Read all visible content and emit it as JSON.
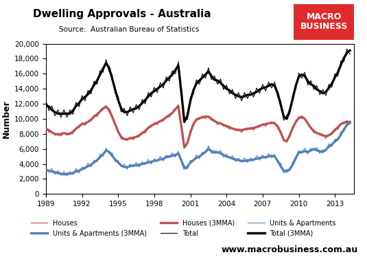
{
  "chart_data": {
    "type": "line",
    "title": "Dwelling Approvals - Australia",
    "subtitle": "Source:  Australian Bureau of Statistics",
    "logo": "MACRO BUSINESS",
    "website": "www.macrobusiness.com.au",
    "y_label": "Number",
    "x": [
      1989.0,
      1989.25,
      1989.5,
      1989.75,
      1990.0,
      1990.25,
      1990.5,
      1990.75,
      1991.0,
      1991.25,
      1991.5,
      1991.75,
      1992.0,
      1992.25,
      1992.5,
      1992.75,
      1993.0,
      1993.25,
      1993.5,
      1993.75,
      1994.0,
      1994.25,
      1994.5,
      1994.75,
      1995.0,
      1995.25,
      1995.5,
      1995.75,
      1996.0,
      1996.25,
      1996.5,
      1996.75,
      1997.0,
      1997.25,
      1997.5,
      1997.75,
      1998.0,
      1998.25,
      1998.5,
      1998.75,
      1999.0,
      1999.25,
      1999.5,
      1999.75,
      2000.0,
      2000.25,
      2000.5,
      2000.75,
      2001.0,
      2001.25,
      2001.5,
      2001.75,
      2002.0,
      2002.25,
      2002.5,
      2002.75,
      2003.0,
      2003.25,
      2003.5,
      2003.75,
      2004.0,
      2004.25,
      2004.5,
      2004.75,
      2005.0,
      2005.25,
      2005.5,
      2005.75,
      2006.0,
      2006.25,
      2006.5,
      2006.75,
      2007.0,
      2007.25,
      2007.5,
      2007.75,
      2008.0,
      2008.25,
      2008.5,
      2008.75,
      2009.0,
      2009.25,
      2009.5,
      2009.75,
      2010.0,
      2010.25,
      2010.5,
      2010.75,
      2011.0,
      2011.25,
      2011.5,
      2011.75,
      2012.0,
      2012.25,
      2012.5,
      2012.75,
      2013.0,
      2013.25,
      2013.5,
      2013.75,
      2014.0,
      2014.25
    ],
    "series": [
      {
        "name": "Houses",
        "color": "#c0504d",
        "line_style": "solid",
        "values": [
          8900,
          8200,
          8300,
          7800,
          8100,
          7700,
          8200,
          7800,
          8200,
          8000,
          8800,
          8800,
          9500,
          9100,
          9700,
          9700,
          10500,
          10300,
          11100,
          11200,
          11800,
          10900,
          10400,
          9100,
          8500,
          7300,
          7400,
          7100,
          7600,
          7200,
          7700,
          7600,
          8300,
          8100,
          8900,
          8900,
          9500,
          9200,
          9800,
          9700,
          10400,
          10200,
          10900,
          11100,
          11900,
          8700,
          6300,
          6600,
          8400,
          9000,
          10000,
          9900,
          10400,
          10000,
          10400,
          9800,
          9900,
          9200,
          9500,
          9000,
          9200,
          8600,
          8800,
          8400,
          8700,
          8200,
          8700,
          8500,
          8900,
          8500,
          9000,
          8900,
          9400,
          9000,
          9500,
          9300,
          9600,
          8700,
          8300,
          7000,
          7200,
          7500,
          8900,
          9400,
          10300,
          10000,
          10100,
          9200,
          9000,
          8100,
          8200,
          7800,
          8000,
          7400,
          7900,
          7900,
          8700,
          8600,
          9400,
          9300,
          9800,
          9300
        ]
      },
      {
        "name": "Houses (3MMA)",
        "color": "#c0504d",
        "line_style": "solid",
        "values": [
          8700,
          8500,
          8200,
          8000,
          7900,
          8000,
          8100,
          8000,
          8000,
          8300,
          8700,
          9000,
          9300,
          9400,
          9600,
          9900,
          10300,
          10600,
          11000,
          11400,
          11600,
          11200,
          10300,
          9300,
          8300,
          7600,
          7300,
          7300,
          7400,
          7500,
          7600,
          7800,
          8100,
          8400,
          8800,
          9100,
          9300,
          9500,
          9700,
          9900,
          10200,
          10500,
          10800,
          11300,
          11700,
          9000,
          6200,
          6800,
          8200,
          9300,
          9900,
          10100,
          10200,
          10300,
          10300,
          10000,
          9700,
          9500,
          9400,
          9200,
          9000,
          8900,
          8700,
          8600,
          8500,
          8500,
          8600,
          8700,
          8700,
          8800,
          8900,
          9100,
          9200,
          9300,
          9400,
          9500,
          9400,
          9000,
          8200,
          7200,
          7000,
          7800,
          8800,
          9600,
          10100,
          10300,
          10000,
          9400,
          8800,
          8400,
          8100,
          8000,
          7800,
          7700,
          7800,
          8100,
          8500,
          8900,
          9300,
          9500,
          9600,
          9600
        ]
      },
      {
        "name": "Units & Apartments",
        "color": "#4f81bd",
        "line_style": "solid",
        "values": [
          3500,
          2900,
          3400,
          2600,
          3100,
          2500,
          3000,
          2400,
          3000,
          2600,
          3400,
          2800,
          3600,
          3300,
          4100,
          3600,
          4500,
          4300,
          5300,
          5000,
          6100,
          5400,
          5500,
          4300,
          4500,
          3600,
          4000,
          3300,
          4000,
          3600,
          4200,
          3600,
          4300,
          3900,
          4600,
          4000,
          4700,
          4300,
          5000,
          4400,
          5200,
          4800,
          5500,
          4900,
          5700,
          4300,
          3800,
          3300,
          4500,
          4300,
          5200,
          4700,
          5600,
          5400,
          6400,
          5400,
          5800,
          5400,
          5800,
          4900,
          5300,
          4700,
          5100,
          4300,
          4800,
          4200,
          4800,
          4200,
          4800,
          4400,
          5100,
          4500,
          5200,
          4700,
          5400,
          4800,
          5300,
          4200,
          4100,
          2800,
          3300,
          3100,
          4300,
          4500,
          5800,
          5400,
          6100,
          5300,
          6100,
          5800,
          6200,
          5400,
          5900,
          5700,
          6700,
          6300,
          7300,
          7100,
          8300,
          8300,
          9500,
          9300
        ]
      },
      {
        "name": "Units & Apartments (3MMA)",
        "color": "#4f81bd",
        "line_style": "solid",
        "values": [
          3200,
          3100,
          3000,
          2900,
          2800,
          2700,
          2600,
          2700,
          2700,
          2800,
          3000,
          3100,
          3300,
          3500,
          3700,
          3900,
          4200,
          4500,
          4900,
          5300,
          5800,
          5600,
          5100,
          4600,
          4200,
          3800,
          3600,
          3600,
          3700,
          3800,
          3800,
          3900,
          4000,
          4100,
          4200,
          4300,
          4400,
          4500,
          4600,
          4700,
          4900,
          5000,
          5100,
          5200,
          5400,
          4500,
          3400,
          3600,
          4200,
          4500,
          4800,
          5000,
          5300,
          5600,
          6000,
          5700,
          5500,
          5600,
          5400,
          5200,
          5000,
          4900,
          4700,
          4600,
          4500,
          4400,
          4400,
          4500,
          4500,
          4600,
          4700,
          4800,
          4900,
          4900,
          5000,
          5100,
          5000,
          4400,
          3700,
          3100,
          3000,
          3300,
          3900,
          4800,
          5500,
          5600,
          5700,
          5600,
          5800,
          6000,
          5800,
          5700,
          5600,
          5900,
          6300,
          6600,
          7000,
          7300,
          7900,
          8600,
          9200,
          9500
        ]
      },
      {
        "name": "Total",
        "color": "#000000",
        "line_style": "solid",
        "values": [
          12400,
          11100,
          11700,
          10400,
          11200,
          10200,
          11200,
          10200,
          11200,
          10600,
          12200,
          11600,
          13100,
          12400,
          13800,
          13300,
          15000,
          14600,
          16400,
          16200,
          17900,
          16300,
          15900,
          13400,
          13000,
          10900,
          11400,
          10400,
          11600,
          10800,
          11900,
          11200,
          12600,
          12000,
          13500,
          12900,
          14200,
          13500,
          14800,
          14100,
          15600,
          15000,
          16400,
          16000,
          17600,
          13000,
          10100,
          9900,
          12900,
          13300,
          15200,
          14600,
          16000,
          15400,
          16800,
          15200,
          15700,
          14600,
          15300,
          13900,
          14500,
          13300,
          13900,
          12700,
          13500,
          12400,
          13500,
          12700,
          13700,
          12900,
          14100,
          13400,
          14600,
          13700,
          14900,
          14100,
          14900,
          12900,
          12400,
          9800,
          10500,
          10600,
          13200,
          13900,
          16100,
          15400,
          16200,
          14500,
          15100,
          13900,
          14400,
          13200,
          13900,
          13100,
          14600,
          14200,
          16000,
          15700,
          17700,
          17600,
          19300,
          18600
        ]
      },
      {
        "name": "Total (3MMA)",
        "color": "#000000",
        "line_style": "solid",
        "values": [
          11900,
          11600,
          11200,
          10900,
          10700,
          10700,
          10700,
          10700,
          10700,
          11100,
          11700,
          12100,
          12600,
          12900,
          13300,
          13800,
          14500,
          15100,
          15900,
          16700,
          17400,
          16800,
          15400,
          13900,
          12500,
          11400,
          10900,
          10900,
          11100,
          11300,
          11400,
          11700,
          12100,
          12500,
          13000,
          13400,
          13700,
          14000,
          14300,
          14600,
          15100,
          15500,
          15900,
          16500,
          17100,
          13500,
          9600,
          10400,
          12400,
          13800,
          14700,
          15100,
          15500,
          15900,
          16300,
          15700,
          15200,
          15100,
          14800,
          14400,
          14000,
          13800,
          13400,
          13200,
          13000,
          12900,
          13000,
          13200,
          13200,
          13400,
          13600,
          13900,
          14100,
          14200,
          14400,
          14600,
          14400,
          13400,
          11900,
          10300,
          10000,
          11100,
          12700,
          14400,
          15600,
          15900,
          15700,
          15000,
          14600,
          14400,
          13900,
          13700,
          13400,
          13600,
          14100,
          14700,
          15500,
          16200,
          17200,
          18100,
          18800,
          19100
        ]
      }
    ],
    "xlim": [
      1989,
      2014.6
    ],
    "xticks": [
      1989,
      1992,
      1995,
      1998,
      2001,
      2004,
      2007,
      2010,
      2013
    ],
    "ylim": [
      0,
      20000
    ],
    "yticks": [
      0,
      {
        "value": 2000,
        "label": "2,000"
      },
      {
        "value": 4000,
        "label": "4,000"
      },
      {
        "value": 6000,
        "label": "6,000"
      },
      {
        "value": 8000,
        "label": "8,000"
      },
      {
        "value": 10000,
        "label": "10,000"
      },
      {
        "value": 12000,
        "label": "12,000"
      },
      {
        "value": 14000,
        "label": "14,000"
      },
      {
        "value": 16000,
        "label": "16,000"
      },
      {
        "value": 18000,
        "label": "18,000"
      },
      {
        "value": 20000,
        "label": "20,000"
      }
    ],
    "grid": false,
    "legend": "lower center"
  }
}
